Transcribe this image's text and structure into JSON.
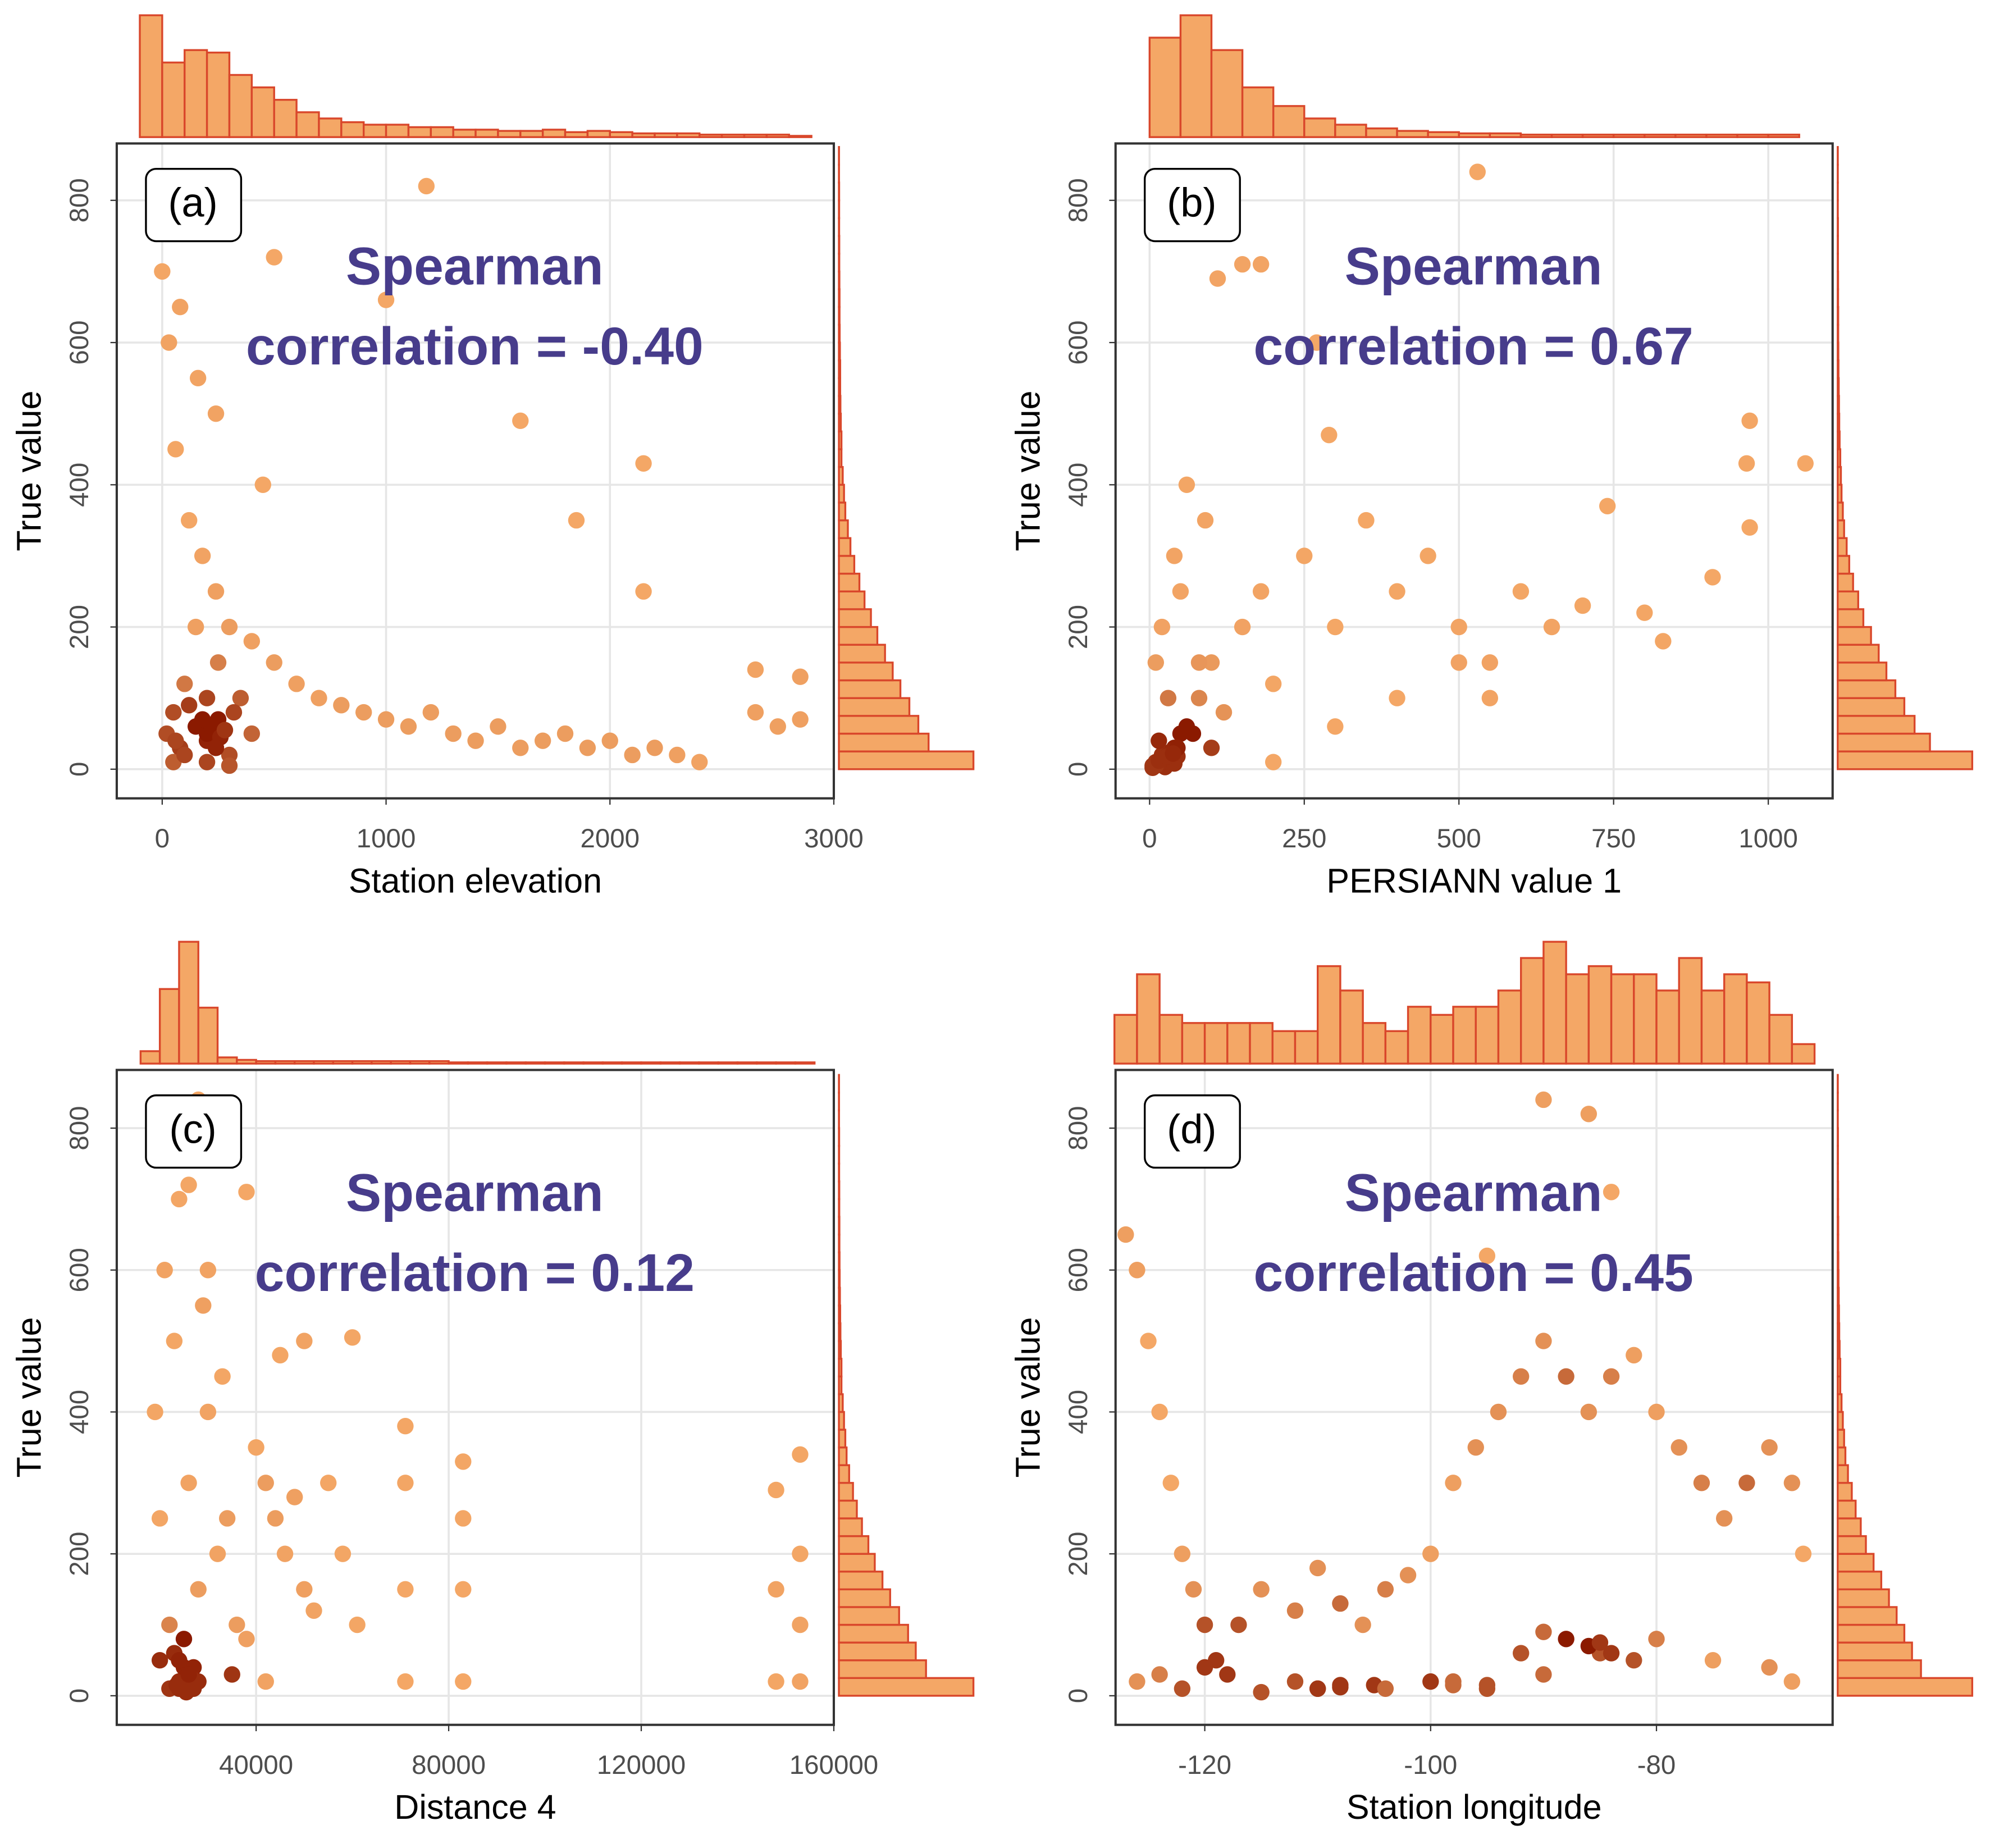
{
  "chart_data": [
    {
      "type": "scatter",
      "panel_label": "(a)",
      "annotation": [
        "Spearman",
        "correlation = -0.40"
      ],
      "x_label": "Station elevation",
      "y_label": "True value",
      "xlim": [
        -203,
        3000
      ],
      "ylim": [
        -41,
        880
      ],
      "xticks": [
        0,
        1000,
        2000,
        3000
      ],
      "yticks": [
        0,
        200,
        400,
        600,
        800
      ],
      "grid": true,
      "colors": [
        "#f4a766",
        "#8b1a00"
      ],
      "hist_color": "#f4a766",
      "hist_edge": "#d9472b",
      "x": [
        20,
        50,
        80,
        100,
        150,
        200,
        250,
        300,
        350,
        400,
        30,
        60,
        120,
        180,
        240,
        300,
        400,
        500,
        600,
        700,
        800,
        900,
        1000,
        1100,
        1200,
        1300,
        1400,
        1500,
        1600,
        1700,
        1800,
        1900,
        2000,
        2100,
        2200,
        2300,
        2400,
        2650,
        2750,
        2850,
        50,
        100,
        200,
        300,
        150,
        250,
        0,
        80,
        160,
        240,
        1180,
        1000,
        500,
        1600,
        1850,
        2150,
        2150,
        2650,
        2850,
        450,
        200,
        220,
        260,
        180,
        240,
        280,
        120,
        60,
        320,
        200
      ],
      "y": [
        50,
        80,
        30,
        120,
        60,
        40,
        70,
        20,
        100,
        50,
        600,
        450,
        350,
        300,
        250,
        200,
        180,
        150,
        120,
        100,
        90,
        80,
        70,
        60,
        80,
        50,
        40,
        60,
        30,
        40,
        50,
        30,
        40,
        20,
        30,
        20,
        10,
        80,
        60,
        70,
        10,
        20,
        10,
        5,
        200,
        150,
        700,
        650,
        550,
        500,
        820,
        660,
        720,
        490,
        350,
        430,
        250,
        140,
        130,
        400,
        50,
        60,
        45,
        70,
        30,
        55,
        90,
        40,
        80,
        100
      ],
      "hist_x": {
        "bins": [
          -100,
          0,
          100,
          200,
          300,
          400,
          500,
          600,
          700,
          800,
          900,
          1000,
          1100,
          1200,
          1300,
          1400,
          1500,
          1600,
          1700,
          1800,
          1900,
          2000,
          2100,
          2200,
          2300,
          2400,
          2500,
          2600,
          2700,
          2800,
          2900
        ],
        "counts": [
          98,
          60,
          70,
          68,
          50,
          40,
          30,
          20,
          15,
          12,
          10,
          10,
          8,
          8,
          6,
          6,
          5,
          5,
          6,
          4,
          5,
          4,
          3,
          3,
          3,
          2,
          2,
          2,
          2,
          1
        ]
      },
      "hist_y": {
        "bins": [
          0,
          25,
          50,
          75,
          100,
          125,
          150,
          175,
          200,
          225,
          250,
          275,
          300,
          325,
          350,
          375,
          400,
          425,
          450,
          475,
          500,
          525,
          550,
          575,
          600,
          625,
          650,
          675,
          700,
          725,
          750,
          775,
          800,
          825,
          850,
          875
        ],
        "counts": [
          105,
          70,
          62,
          55,
          48,
          42,
          36,
          30,
          25,
          20,
          16,
          12,
          9,
          7,
          5,
          4,
          3,
          2,
          2,
          1.5,
          1.2,
          1,
          1,
          0.8,
          0.6,
          0.5,
          0.5,
          0.4,
          0.3,
          0.3,
          0.2,
          0.2,
          0.2,
          0.1,
          0.1
        ]
      }
    },
    {
      "type": "scatter",
      "panel_label": "(b)",
      "annotation": [
        "Spearman",
        "correlation = 0.67"
      ],
      "x_label": "PERSIANN value 1",
      "y_label": "True value",
      "xlim": [
        -55,
        1104
      ],
      "ylim": [
        -41,
        880
      ],
      "xticks": [
        0,
        250,
        500,
        750,
        1000
      ],
      "yticks": [
        0,
        200,
        400,
        600,
        800
      ],
      "grid": true,
      "colors": [
        "#f4a766",
        "#8b1a00"
      ],
      "hist_color": "#f4a766",
      "hist_edge": "#d9472b",
      "x": [
        5,
        10,
        20,
        30,
        40,
        15,
        25,
        35,
        50,
        60,
        80,
        100,
        120,
        150,
        180,
        200,
        250,
        300,
        350,
        400,
        450,
        500,
        550,
        600,
        650,
        700,
        740,
        800,
        830,
        910,
        970,
        970,
        1060,
        965,
        150,
        180,
        110,
        290,
        530,
        270,
        20,
        40,
        60,
        80,
        30,
        50,
        70,
        90,
        10,
        100,
        5,
        15,
        25,
        35,
        45,
        200,
        300,
        400,
        500,
        550,
        20,
        30,
        25,
        35,
        40,
        10,
        15,
        45,
        28,
        38
      ],
      "y": [
        5,
        10,
        20,
        15,
        30,
        40,
        5,
        25,
        50,
        60,
        100,
        150,
        80,
        200,
        250,
        120,
        300,
        200,
        350,
        250,
        300,
        200,
        150,
        250,
        200,
        230,
        370,
        220,
        180,
        270,
        340,
        490,
        430,
        430,
        710,
        710,
        690,
        470,
        840,
        600,
        200,
        300,
        400,
        150,
        100,
        250,
        50,
        350,
        150,
        30,
        2,
        8,
        3,
        12,
        18,
        10,
        60,
        100,
        150,
        100,
        10,
        20,
        15,
        25,
        8,
        5,
        12,
        30,
        18,
        22
      ],
      "hist_x": {
        "bins": [
          0,
          50,
          100,
          150,
          200,
          250,
          300,
          350,
          400,
          450,
          500,
          550,
          600,
          650,
          700,
          750,
          800,
          850,
          900,
          950,
          1000,
          1050
        ],
        "counts": [
          80,
          98,
          70,
          40,
          25,
          15,
          10,
          7,
          5,
          4,
          3,
          3,
          2,
          2,
          2,
          2,
          2,
          2,
          2,
          2,
          2
        ]
      },
      "hist_y": {
        "bins": [
          0,
          25,
          50,
          75,
          100,
          125,
          150,
          175,
          200,
          225,
          250,
          275,
          300,
          325,
          350,
          375,
          400,
          425,
          450,
          475,
          500,
          525,
          550,
          575,
          600,
          625,
          650,
          675,
          700,
          725,
          750,
          775,
          800,
          825,
          850,
          875
        ],
        "counts": [
          105,
          72,
          60,
          52,
          45,
          38,
          32,
          26,
          20,
          16,
          12,
          9,
          7,
          5,
          4,
          3,
          2.5,
          2,
          1.5,
          1.2,
          1,
          0.8,
          0.6,
          0.5,
          0.4,
          0.4,
          0.3,
          0.3,
          0.2,
          0.2,
          0.2,
          0.1,
          0.1,
          0.1,
          0.1
        ]
      }
    },
    {
      "type": "scatter",
      "panel_label": "(c)",
      "annotation": [
        "Spearman",
        "correlation = 0.12"
      ],
      "x_label": "Distance 4",
      "y_label": "True value",
      "xlim": [
        11053,
        160000
      ],
      "ylim": [
        -41,
        882
      ],
      "xticks": [
        40000,
        80000,
        120000,
        160000
      ],
      "yticks": [
        0,
        200,
        400,
        600,
        800
      ],
      "grid": true,
      "colors": [
        "#f4a766",
        "#8b1a00"
      ],
      "hist_color": "#f4a766",
      "hist_edge": "#d9472b",
      "x": [
        20000,
        22000,
        24000,
        26000,
        28000,
        30000,
        32000,
        34000,
        36000,
        38000,
        40000,
        42000,
        44000,
        46000,
        48000,
        50000,
        52000,
        55000,
        58000,
        61000,
        71000,
        71000,
        71000,
        71000,
        83000,
        83000,
        83000,
        83000,
        148000,
        148000,
        148000,
        153000,
        153000,
        153000,
        153000,
        24000,
        26000,
        28000,
        30000,
        38000,
        22000,
        24000,
        25000,
        26000,
        27000,
        28000,
        23000,
        25000,
        27000,
        60000,
        19000,
        21000,
        23000,
        29000,
        33000,
        45000,
        50000,
        20000,
        35000,
        42000,
        24000,
        25000,
        26000,
        24500,
        25500,
        23500,
        26500,
        25000,
        24000,
        26000
      ],
      "y": [
        50,
        100,
        20,
        300,
        150,
        400,
        200,
        250,
        100,
        80,
        350,
        300,
        250,
        200,
        280,
        150,
        120,
        300,
        200,
        100,
        20,
        150,
        300,
        380,
        20,
        150,
        250,
        330,
        20,
        290,
        150,
        20,
        100,
        200,
        340,
        700,
        720,
        840,
        600,
        710,
        10,
        20,
        15,
        30,
        10,
        20,
        60,
        80,
        40,
        505,
        400,
        600,
        500,
        550,
        450,
        480,
        500,
        250,
        30,
        20,
        10,
        12,
        8,
        20,
        5,
        15,
        25,
        40,
        50,
        30
      ],
      "hist_x": {
        "bins": [
          16000,
          20000,
          24000,
          28000,
          32000,
          36000,
          40000,
          44000,
          48000,
          52000,
          56000,
          60000,
          64000,
          68000,
          72000,
          76000,
          80000,
          84000,
          88000,
          92000,
          96000,
          100000,
          104000,
          108000,
          112000,
          116000,
          120000,
          124000,
          128000,
          132000,
          136000,
          140000,
          144000,
          148000,
          152000,
          156000
        ],
        "counts": [
          10,
          60,
          98,
          45,
          5,
          3,
          2,
          2,
          2,
          2,
          2,
          2,
          2,
          2,
          2,
          2,
          1,
          1,
          1,
          1,
          1,
          1,
          1,
          1,
          1,
          1,
          1,
          1,
          1,
          1,
          1,
          1,
          1,
          1,
          1
        ]
      },
      "hist_y": {
        "bins": [
          0,
          25,
          50,
          75,
          100,
          125,
          150,
          175,
          200,
          225,
          250,
          275,
          300,
          325,
          350,
          375,
          400,
          425,
          450,
          475,
          500,
          525,
          550,
          575,
          600,
          625,
          650,
          675,
          700,
          725,
          750,
          775,
          800,
          825,
          850,
          875
        ],
        "counts": [
          105,
          68,
          60,
          54,
          47,
          40,
          34,
          28,
          23,
          18,
          14,
          11,
          8,
          6,
          5,
          4,
          3,
          2,
          2,
          1.5,
          1.2,
          1,
          0.8,
          0.6,
          0.5,
          0.4,
          0.4,
          0.3,
          0.3,
          0.2,
          0.2,
          0.2,
          0.1,
          0.1,
          0.1
        ]
      }
    },
    {
      "type": "scatter",
      "panel_label": "(d)",
      "annotation": [
        "Spearman",
        "correlation = 0.45"
      ],
      "x_label": "Station longitude",
      "y_label": "True value",
      "xlim": [
        -127.9,
        -64.4
      ],
      "ylim": [
        -41,
        882
      ],
      "xticks": [
        -120,
        -100,
        -80
      ],
      "yticks": [
        0,
        200,
        400,
        600,
        800
      ],
      "grid": true,
      "colors": [
        "#f4a766",
        "#8b1a00"
      ],
      "hist_color": "#f4a766",
      "hist_edge": "#d9472b",
      "x": [
        -127,
        -126,
        -125,
        -124,
        -123,
        -122,
        -121,
        -120,
        -119,
        -118,
        -117,
        -115,
        -112,
        -110,
        -108,
        -106,
        -104,
        -102,
        -100,
        -98,
        -96,
        -94,
        -92,
        -90,
        -88,
        -86,
        -84,
        -82,
        -80,
        -78,
        -76,
        -74,
        -72,
        -70,
        -68,
        -67,
        -90,
        -86,
        -84,
        -95,
        -110,
        -105,
        -100,
        -95,
        -90,
        -85,
        -80,
        -75,
        -70,
        -68,
        -126,
        -124,
        -122,
        -120,
        -115,
        -112,
        -108,
        -104,
        -98,
        -92,
        -86,
        -84,
        -88,
        -82,
        -90,
        -85,
        -95,
        -98,
        -110,
        -108
      ],
      "y": [
        650,
        600,
        500,
        400,
        300,
        200,
        150,
        100,
        50,
        30,
        100,
        150,
        120,
        180,
        130,
        100,
        150,
        170,
        200,
        300,
        350,
        400,
        450,
        500,
        450,
        400,
        450,
        480,
        400,
        350,
        300,
        250,
        300,
        350,
        300,
        200,
        840,
        820,
        710,
        620,
        10,
        15,
        20,
        10,
        30,
        60,
        80,
        50,
        40,
        20,
        20,
        30,
        10,
        40,
        5,
        20,
        15,
        10,
        15,
        60,
        70,
        60,
        80,
        50,
        90,
        75,
        15,
        20,
        10,
        12
      ],
      "hist_x": {
        "bins": [
          -128,
          -126,
          -124,
          -122,
          -120,
          -118,
          -116,
          -114,
          -112,
          -110,
          -108,
          -106,
          -104,
          -102,
          -100,
          -98,
          -96,
          -94,
          -92,
          -90,
          -88,
          -86,
          -84,
          -82,
          -80,
          -78,
          -76,
          -74,
          -72,
          -70,
          -68,
          -66
        ],
        "counts": [
          30,
          55,
          30,
          25,
          25,
          25,
          25,
          20,
          20,
          60,
          45,
          25,
          20,
          35,
          30,
          35,
          35,
          45,
          65,
          75,
          55,
          60,
          55,
          55,
          45,
          65,
          45,
          55,
          50,
          30,
          12
        ]
      },
      "hist_y": {
        "bins": [
          0,
          25,
          50,
          75,
          100,
          125,
          150,
          175,
          200,
          225,
          250,
          275,
          300,
          325,
          350,
          375,
          400,
          425,
          450,
          475,
          500,
          525,
          550,
          575,
          600,
          625,
          650,
          675,
          700,
          725,
          750,
          775,
          800,
          825,
          850,
          875
        ],
        "counts": [
          105,
          65,
          58,
          52,
          46,
          40,
          34,
          28,
          22,
          18,
          14,
          11,
          8,
          6,
          5,
          4,
          3,
          2,
          2,
          1.5,
          1.2,
          1,
          0.8,
          0.6,
          0.5,
          0.4,
          0.4,
          0.3,
          0.3,
          0.2,
          0.2,
          0.2,
          0.1,
          0.1,
          0.1
        ]
      }
    }
  ]
}
